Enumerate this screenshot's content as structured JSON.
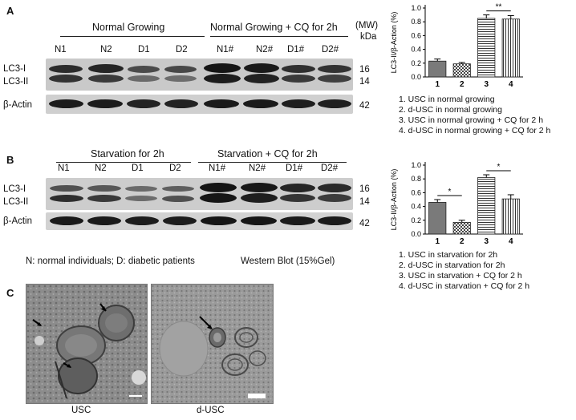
{
  "panelA": {
    "letter": "A",
    "group1": "Normal Growing",
    "group2": "Normal Growing + CQ for 2h",
    "mw_label": "(MW)",
    "kda_label": "kDa",
    "lanes": [
      "N1",
      "N2",
      "D1",
      "D2",
      "N1#",
      "N2#",
      "D1#",
      "D2#"
    ],
    "row_labels": {
      "lc3i": "LC3-I",
      "lc3ii": "LC3-II",
      "actin": "β-Actin"
    },
    "kda": [
      "16",
      "14",
      "42"
    ],
    "legend": [
      "1. USC in normal  growing",
      "2. d-USC in normal growing",
      "3. USC in normal  growing + CQ for 2 h",
      "4. d-USC in normal growing + CQ for 2 h"
    ]
  },
  "panelB": {
    "letter": "B",
    "group1": "Starvation for 2h",
    "group2": "Starvation + CQ for 2h",
    "lanes": [
      "N1",
      "N2",
      "D1",
      "D2",
      "N1#",
      "N2#",
      "D1#",
      "D2#"
    ],
    "row_labels": {
      "lc3i": "LC3-I",
      "lc3ii": "LC3-II",
      "actin": "β-Actin"
    },
    "kda": [
      "16",
      "14",
      "42"
    ],
    "legend": [
      "1. USC in starvation for 2h",
      "2. d-USC in starvation for 2h",
      "3. USC in starvation + CQ for 2 h",
      "4. d-USC in starvation + CQ for 2 h"
    ]
  },
  "footnote": {
    "abbrev": "N: normal individuals; D: diabetic patients",
    "method": "Western Blot (15%Gel)"
  },
  "panelC": {
    "letter": "C",
    "labels": [
      "USC",
      "d-USC"
    ]
  },
  "chart_data": [
    {
      "type": "bar",
      "categories": [
        "1",
        "2",
        "3",
        "4"
      ],
      "values": [
        0.23,
        0.19,
        0.85,
        0.84
      ],
      "errors": [
        0.03,
        0.02,
        0.05,
        0.05
      ],
      "ylabel": "LC3-II/β-Action (%)",
      "ylim": [
        0,
        1.0
      ],
      "yticks": [
        0.0,
        0.2,
        0.4,
        0.6,
        0.8,
        1.0
      ],
      "significance": [
        {
          "between": [
            "3",
            "4"
          ],
          "label": "**"
        }
      ]
    },
    {
      "type": "bar",
      "categories": [
        "1",
        "2",
        "3",
        "4"
      ],
      "values": [
        0.46,
        0.17,
        0.82,
        0.51
      ],
      "errors": [
        0.04,
        0.03,
        0.04,
        0.06
      ],
      "ylabel": "LC3-II/β-Action (%)",
      "ylim": [
        0,
        1.0
      ],
      "yticks": [
        0.0,
        0.2,
        0.4,
        0.6,
        0.8,
        1.0
      ],
      "significance": [
        {
          "between": [
            "1",
            "2"
          ],
          "label": "*"
        },
        {
          "between": [
            "3",
            "4"
          ],
          "label": "*"
        }
      ]
    }
  ]
}
